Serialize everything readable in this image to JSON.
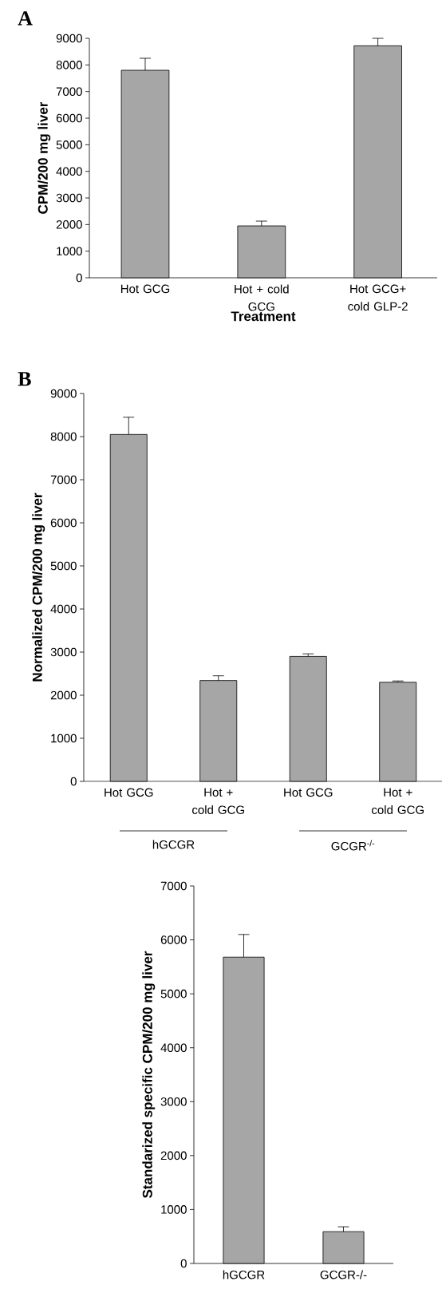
{
  "chart_data": [
    {
      "type": "bar",
      "title": "A",
      "xlabel": "Treatment",
      "ylabel": "CPM/200 mg liver",
      "color": "#a6a6a6",
      "categories": [
        "Hot GCG",
        "Hot + cold GCG",
        "Hot GCG+ cold GLP-2"
      ],
      "values": [
        7800,
        1950,
        8720
      ],
      "errors": [
        [
          7800,
          8250
        ],
        [
          1950,
          2130
        ],
        [
          8720,
          9000
        ]
      ],
      "ylim": [
        0,
        9000
      ],
      "yticks": [
        0,
        1000,
        2000,
        3000,
        4000,
        5000,
        6000,
        7000,
        8000,
        9000
      ]
    },
    {
      "type": "bar",
      "title": "B",
      "ylabel": "Normalized CPM/200 mg liver",
      "color": "#a6a6a6",
      "categories": [
        "Hot GCG",
        "Hot + cold GCG",
        "Hot GCG",
        "Hot + cold GCG"
      ],
      "values": [
        8050,
        2340,
        2900,
        2300
      ],
      "errors": [
        [
          8050,
          8450
        ],
        [
          2340,
          2450
        ],
        [
          2900,
          2960
        ],
        [
          2300,
          2330
        ]
      ],
      "annotations": [
        "hGCGR",
        "GCGR$^{-/-}$"
      ],
      "ylim": [
        0,
        9000
      ],
      "yticks": [
        0,
        1000,
        2000,
        3000,
        4000,
        5000,
        6000,
        7000,
        8000,
        9000
      ]
    },
    {
      "type": "bar",
      "ylabel": "Standarized specific CPM/200 mg liver",
      "color": "#a6a6a6",
      "categories": [
        "hGCGR",
        "GCGR-/-"
      ],
      "values": [
        5680,
        590
      ],
      "errors": [
        [
          5680,
          6100
        ],
        [
          590,
          680
        ]
      ],
      "ylim": [
        0,
        7000
      ],
      "yticks": [
        0,
        1000,
        2000,
        3000,
        4000,
        5000,
        6000,
        7000
      ]
    }
  ]
}
